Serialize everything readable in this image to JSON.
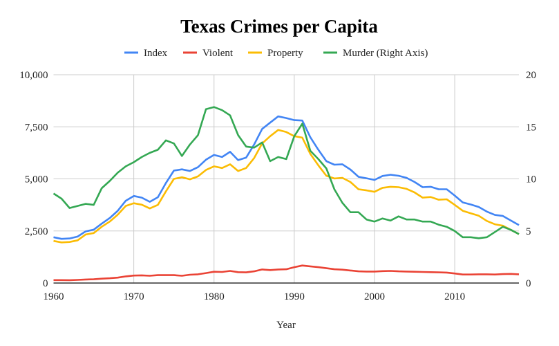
{
  "chart_data": {
    "type": "line",
    "title": "Texas Crimes per Capita",
    "xlabel": "Year",
    "ylabel": "",
    "ylabel_right": "",
    "xlim": [
      1960,
      2018
    ],
    "ylim": [
      0,
      10000
    ],
    "ylim_right": [
      0,
      20
    ],
    "x_ticks": [
      "1960",
      "1970",
      "1980",
      "1990",
      "2000",
      "2010"
    ],
    "y_ticks": [
      "0",
      "2,500",
      "5,000",
      "7,500",
      "10,000"
    ],
    "y_ticks_right": [
      "0",
      "5",
      "10",
      "15",
      "20"
    ],
    "grid": true,
    "legend_position": "top",
    "x": [
      1960,
      1961,
      1962,
      1963,
      1964,
      1965,
      1966,
      1967,
      1968,
      1969,
      1970,
      1971,
      1972,
      1973,
      1974,
      1975,
      1976,
      1977,
      1978,
      1979,
      1980,
      1981,
      1982,
      1983,
      1984,
      1985,
      1986,
      1987,
      1988,
      1989,
      1990,
      1991,
      1992,
      1993,
      1994,
      1995,
      1996,
      1997,
      1998,
      1999,
      2000,
      2001,
      2002,
      2003,
      2004,
      2005,
      2006,
      2007,
      2008,
      2009,
      2010,
      2011,
      2012,
      2013,
      2014,
      2015,
      2016,
      2017,
      2018
    ],
    "series": [
      {
        "name": "Index",
        "color": "#4285f4",
        "axis": "left",
        "values": [
          2200,
          2120,
          2140,
          2230,
          2480,
          2560,
          2850,
          3120,
          3470,
          3950,
          4180,
          4100,
          3900,
          4120,
          4800,
          5400,
          5460,
          5380,
          5560,
          5920,
          6150,
          6050,
          6300,
          5900,
          6020,
          6650,
          7400,
          7700,
          8000,
          7920,
          7820,
          7800,
          7000,
          6400,
          5850,
          5680,
          5700,
          5450,
          5100,
          5030,
          4950,
          5140,
          5200,
          5150,
          5050,
          4850,
          4600,
          4620,
          4500,
          4500,
          4200,
          3870,
          3770,
          3650,
          3430,
          3270,
          3220,
          3000,
          2780
        ]
      },
      {
        "name": "Violent",
        "color": "#ea4335",
        "axis": "left",
        "values": [
          140,
          140,
          135,
          150,
          170,
          180,
          210,
          230,
          260,
          320,
          360,
          370,
          350,
          380,
          380,
          380,
          350,
          400,
          420,
          480,
          540,
          530,
          580,
          520,
          510,
          560,
          650,
          620,
          650,
          660,
          760,
          840,
          800,
          760,
          710,
          660,
          640,
          600,
          560,
          550,
          550,
          570,
          580,
          560,
          550,
          540,
          530,
          520,
          510,
          500,
          460,
          410,
          410,
          420,
          420,
          410,
          430,
          440,
          420
        ]
      },
      {
        "name": "Property",
        "color": "#fbbc04",
        "axis": "left",
        "values": [
          2020,
          1950,
          1970,
          2050,
          2330,
          2400,
          2700,
          2950,
          3280,
          3700,
          3830,
          3760,
          3580,
          3750,
          4400,
          5000,
          5080,
          4980,
          5120,
          5430,
          5600,
          5520,
          5700,
          5380,
          5520,
          6000,
          6700,
          7050,
          7350,
          7250,
          7050,
          6980,
          6200,
          5650,
          5150,
          5020,
          5050,
          4850,
          4500,
          4450,
          4380,
          4570,
          4620,
          4600,
          4520,
          4350,
          4100,
          4130,
          4000,
          4020,
          3750,
          3470,
          3350,
          3230,
          2980,
          2820,
          2750,
          2550,
          2350
        ]
      },
      {
        "name": "Murder (Right Axis)",
        "color": "#34a853",
        "axis": "right",
        "values": [
          8.6,
          8.1,
          7.2,
          7.4,
          7.6,
          7.5,
          9.1,
          9.8,
          10.6,
          11.2,
          11.6,
          12.1,
          12.5,
          12.8,
          13.7,
          13.4,
          12.2,
          13.3,
          14.2,
          16.7,
          16.9,
          16.6,
          16.1,
          14.2,
          13.1,
          13.0,
          13.5,
          11.7,
          12.1,
          11.9,
          14.1,
          15.3,
          12.7,
          11.9,
          11.0,
          9.0,
          7.7,
          6.8,
          6.8,
          6.1,
          5.9,
          6.2,
          6.0,
          6.4,
          6.1,
          6.1,
          5.9,
          5.9,
          5.6,
          5.4,
          5.0,
          4.4,
          4.4,
          4.3,
          4.4,
          4.9,
          5.4,
          5.1,
          4.7
        ]
      }
    ]
  }
}
